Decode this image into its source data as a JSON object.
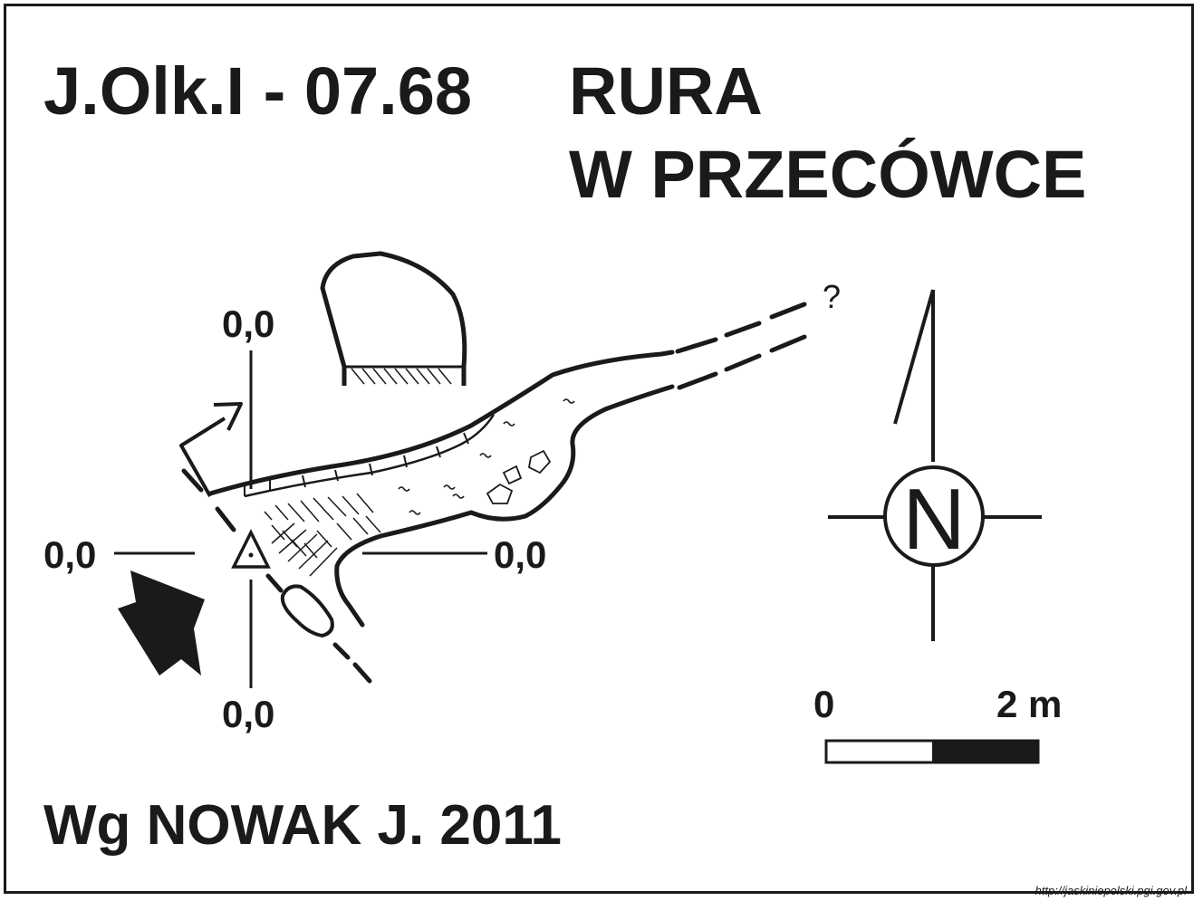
{
  "title": {
    "cave_id": "J.Olk.I - 07.68",
    "name_line1": "RURA",
    "name_line2": "W PRZECÓWCE"
  },
  "author": "Wg NOWAK J. 2011",
  "source_url": "http://jaskiniepolski.pgi.gov.pl",
  "datum_labels": {
    "top": "0,0",
    "left": "0,0",
    "right": "0,0",
    "bottom": "0,0"
  },
  "unknown_continuation": "?",
  "compass": {
    "letter": "N"
  },
  "scale": {
    "start_label": "0",
    "end_label": "2 m"
  },
  "colors": {
    "ink": "#1a1a1a",
    "paper": "#ffffff"
  }
}
